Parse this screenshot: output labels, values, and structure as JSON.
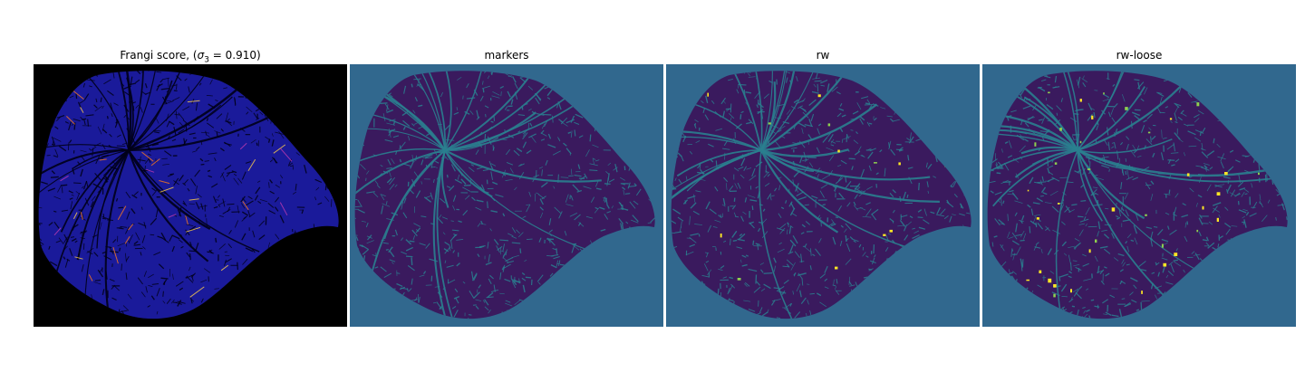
{
  "panels": [
    {
      "title_prefix": "Frangi score, (",
      "title_symbol": "σ",
      "title_subscript": "3",
      "title_suffix": " = 0.910)",
      "background": "#000000",
      "tissue_color": "#1a1a9a",
      "vessel_color": "#000018",
      "highlight_colors": [
        "#ff7a1a",
        "#ffd04a",
        "#c23bb0"
      ]
    },
    {
      "title": "markers",
      "background": "#31688e",
      "tissue_color": "#3a1a5e",
      "vessel_color": "#2a7f8f",
      "highlight_colors": []
    },
    {
      "title": "rw",
      "background": "#31688e",
      "tissue_color": "#3a1a5e",
      "vessel_color": "#2a7f8f",
      "highlight_colors": [
        "#8fd14f",
        "#fde725"
      ]
    },
    {
      "title": "rw-loose",
      "background": "#31688e",
      "tissue_color": "#3a1a5e",
      "vessel_color": "#2a7f8f",
      "highlight_colors": [
        "#8fd14f",
        "#fde725"
      ]
    }
  ]
}
